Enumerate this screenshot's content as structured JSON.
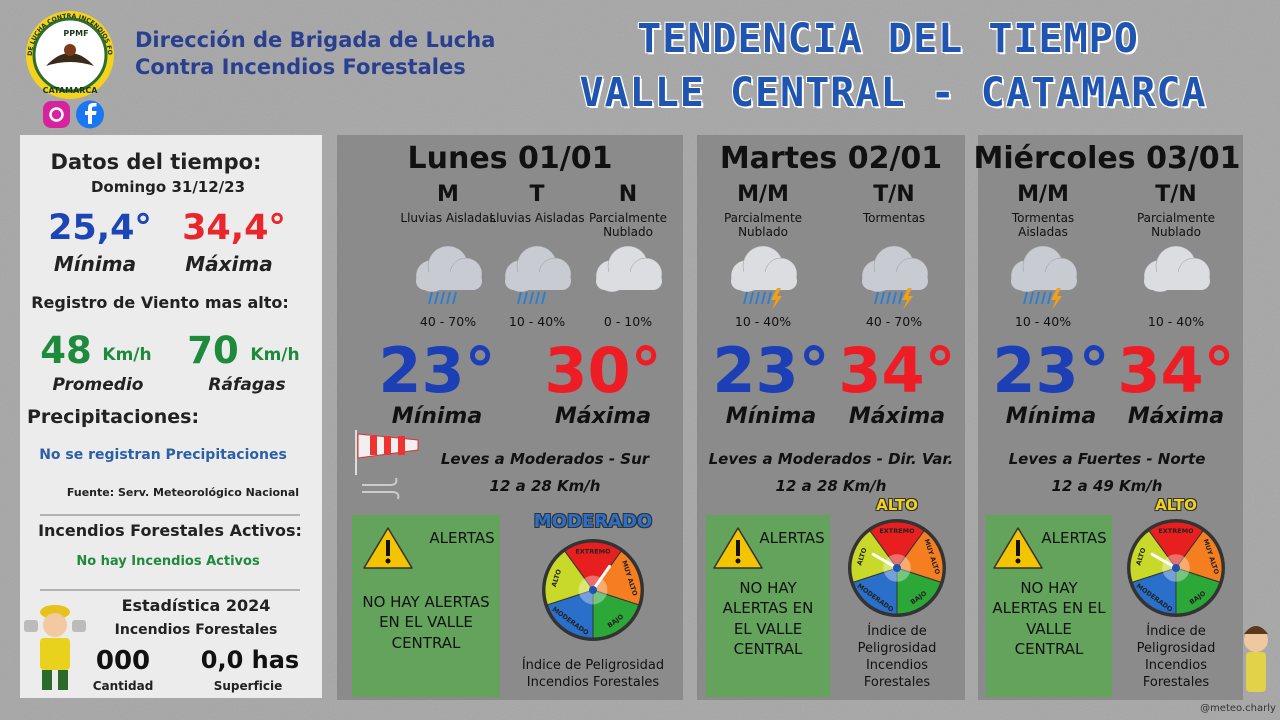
{
  "header": {
    "logo_top": "BRIGADA DE LUCHA CONTRA INCENDIOS FORESTALES",
    "logo_mid": "PPMF",
    "logo_bottom": "CATAMARCA",
    "org_line1": "Dirección de Brigada de Lucha",
    "org_line2": "Contra Incendios Forestales",
    "title_line1": "TENDENCIA DEL TIEMPO",
    "title_line2": "VALLE CENTRAL - CATAMARCA"
  },
  "summary": {
    "title": "Datos del tiempo:",
    "date": "Domingo 31/12/23",
    "min": "25,4°",
    "min_label": "Mínima",
    "max": "34,4°",
    "max_label": "Máxima",
    "wind_title": "Registro de Viento mas alto:",
    "wind_avg": "48",
    "wind_unit": "Km/h",
    "wind_avg_label": "Promedio",
    "wind_gust": "70",
    "wind_gust_label": "Ráfagas",
    "precip_title": "Precipitaciones:",
    "precip_text": "No se registran Precipitaciones",
    "source": "Fuente: Serv. Meteorológico Nacional",
    "fires_title": "Incendios Forestales Activos:",
    "fires_text": "No hay Incendios Activos",
    "stats_title": "Estadística 2024",
    "stats_subtitle": "Incendios Forestales",
    "count": "000",
    "count_label": "Cantidad",
    "area": "0,0 has",
    "area_label": "Superficie"
  },
  "days": [
    {
      "title": "Lunes 01/01",
      "periods": [
        {
          "label": "M",
          "forecast": "Lluvias Aisladas",
          "probability": "40 - 70%"
        },
        {
          "label": "T",
          "forecast": "Lluvias Aisladas",
          "probability": "10 - 40%"
        },
        {
          "label": "N",
          "forecast": "Parcialmente Nublado",
          "probability": "0 - 10%"
        }
      ],
      "min": "23°",
      "min_label": "Mínima",
      "max": "30°",
      "max_label": "Máxima",
      "wind": "Leves a Moderados - Sur",
      "wind_speed": "12 a 28 Km/h",
      "alert_title": "ALERTAS",
      "alert_text": "NO HAY ALERTAS EN EL VALLE CENTRAL",
      "risk_level": "MODERADO",
      "risk_caption": "Índice de Peligrosidad Incendios Forestales"
    },
    {
      "title": "Martes 02/01",
      "periods": [
        {
          "label": "M/M",
          "forecast": "Parcialmente Nublado",
          "probability": "10 - 40%"
        },
        {
          "label": "T/N",
          "forecast": "Tormentas",
          "probability": "40 - 70%"
        }
      ],
      "min": "23°",
      "min_label": "Mínima",
      "max": "34°",
      "max_label": "Máxima",
      "wind": "Leves a Moderados - Dir. Var.",
      "wind_speed": "12 a 28 Km/h",
      "alert_title": "ALERTAS",
      "alert_text": "NO HAY ALERTAS EN EL VALLE CENTRAL",
      "risk_level": "ALTO",
      "risk_caption": "Índice de Peligrosidad Incendios Forestales"
    },
    {
      "title": "Miércoles 03/01",
      "periods": [
        {
          "label": "M/M",
          "forecast": "Tormentas Aisladas",
          "probability": "10 - 40%"
        },
        {
          "label": "T/N",
          "forecast": "Parcialmente Nublado",
          "probability": "10 - 40%"
        }
      ],
      "min": "23°",
      "min_label": "Mínima",
      "max": "34°",
      "max_label": "Máxima",
      "wind": "Leves a Fuertes - Norte",
      "wind_speed": "12 a 49 Km/h",
      "alert_title": "ALERTAS",
      "alert_text": "NO HAY ALERTAS EN EL VALLE CENTRAL",
      "risk_level": "ALTO",
      "risk_caption": "Índice de Peligrosidad Incendios Forestales"
    }
  ],
  "gauge_labels": [
    "EXTREMO",
    "MUY ALTO",
    "BAJO",
    "MODERADO",
    "ALTO"
  ],
  "footer": {
    "credit": "@meteo.charly"
  }
}
